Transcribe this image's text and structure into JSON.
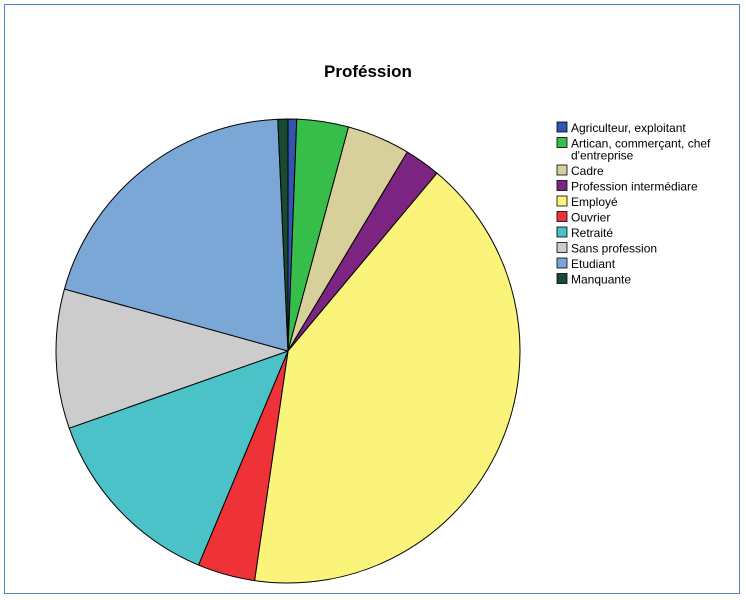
{
  "chart_data": {
    "type": "pie",
    "title": "Proféssion",
    "legend_position": "right",
    "categories": [
      "Agriculteur, exploitant",
      "Artican, commerçant, chef d'entreprise",
      "Cadre",
      "Profession intermédiare",
      "Employé",
      "Ouvrier",
      "Retraité",
      "Sans profession",
      "Etudiant",
      "Manquante"
    ],
    "legend_lines": [
      [
        "Agriculteur, exploitant"
      ],
      [
        "Artican, commerçant, chef",
        "d'entreprise"
      ],
      [
        "Cadre"
      ],
      [
        "Profession intermédiare"
      ],
      [
        "Employé"
      ],
      [
        "Ouvrier"
      ],
      [
        "Retraité"
      ],
      [
        "Sans profession"
      ],
      [
        "Etudiant"
      ],
      [
        "Manquante"
      ]
    ],
    "values": [
      0.6,
      3.6,
      4.4,
      2.5,
      41.2,
      4.0,
      13.3,
      9.7,
      20.0,
      0.7
    ],
    "colors": [
      "#3355b0",
      "#36bd4a",
      "#d7d09b",
      "#7b2481",
      "#faf57a",
      "#ee3237",
      "#4bc2c7",
      "#cccccc",
      "#7ba7d6",
      "#174c33"
    ],
    "start_angle_deg": 0,
    "direction": "clockwise"
  }
}
